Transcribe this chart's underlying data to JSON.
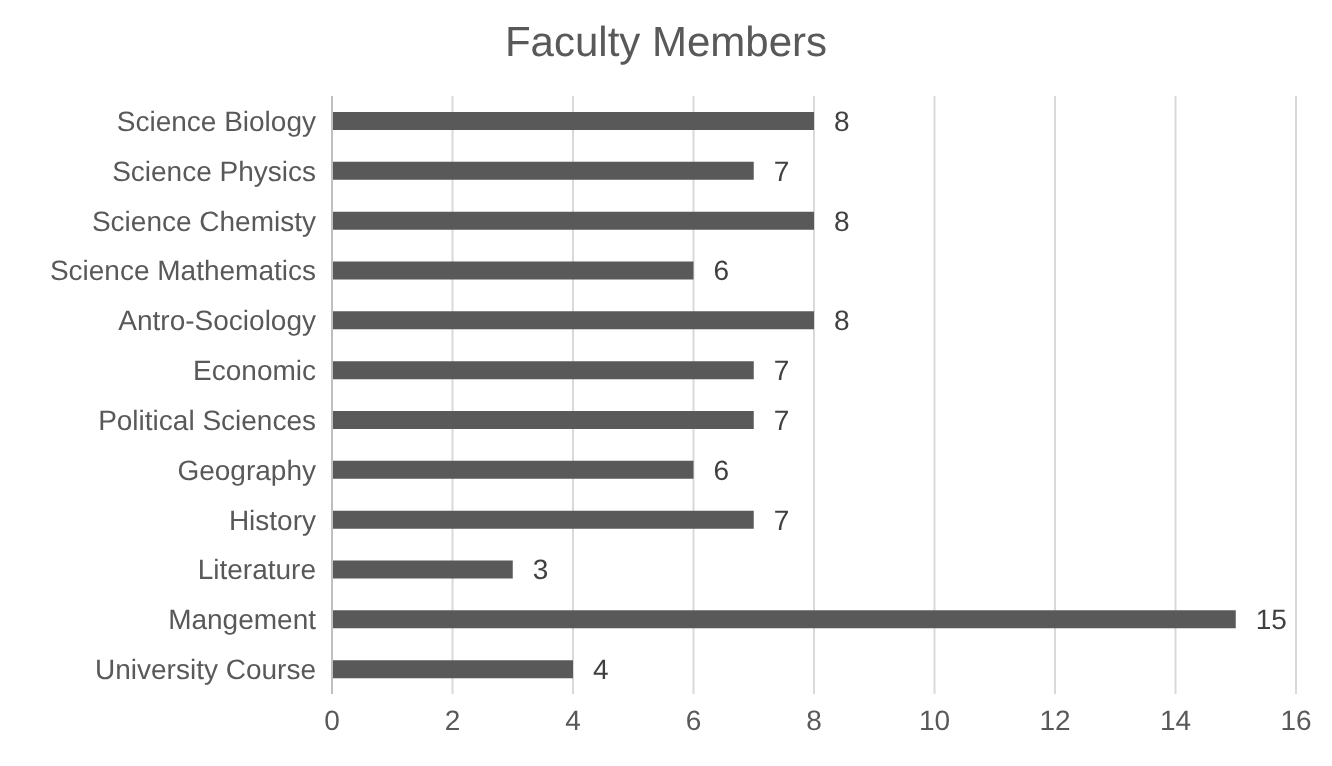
{
  "chart_data": {
    "type": "bar",
    "orientation": "horizontal",
    "title": "Faculty Members",
    "categories": [
      "Science Biology",
      "Science Physics",
      "Science Chemisty",
      "Science Mathematics",
      "Antro-Sociology",
      "Economic",
      "Political Sciences",
      "Geography",
      "History",
      "Literature",
      "Mangement",
      "University Course"
    ],
    "values": [
      8,
      7,
      8,
      6,
      8,
      7,
      7,
      6,
      7,
      3,
      15,
      4
    ],
    "color": "#595959",
    "xlim": [
      0,
      16
    ],
    "xticks": [
      0,
      2,
      4,
      6,
      8,
      10,
      12,
      14,
      16
    ],
    "grid": "x",
    "data_labels": true
  }
}
